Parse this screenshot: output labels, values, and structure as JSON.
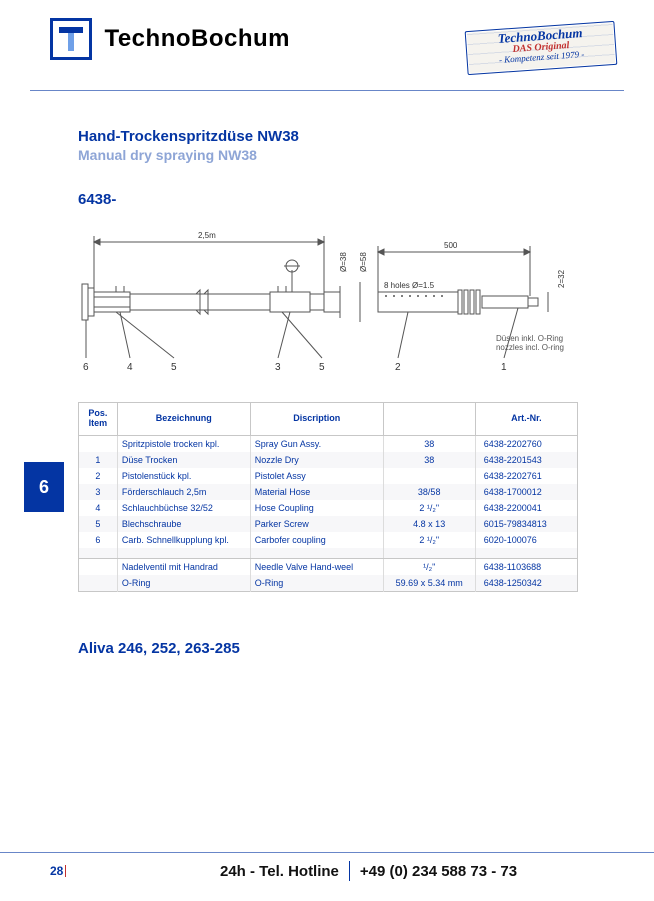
{
  "header": {
    "brand": "TechnoBochum",
    "stamp_brand": "TechnoBochum",
    "stamp_mid": "DAS Original",
    "stamp_bot": "- Kompetenz seit 1979 -",
    "logo_color": "#0435a3"
  },
  "titles": {
    "de": "Hand-Trockenspritzdüse NW38",
    "en": "Manual dry spraying NW38",
    "code": "6438-",
    "models": "Aliva 246, 252, 263-285"
  },
  "diagram": {
    "dim_length_m": "2,5m",
    "dim_d1": "Ø=38",
    "dim_d2": "Ø=58",
    "dim_right_len": "500",
    "dim_right_h": "2=32",
    "holes_note": "8 holes Ø=1.5",
    "callouts": [
      "6",
      "4",
      "5",
      "3",
      "5",
      "2",
      "1"
    ],
    "caption_de": "Düsen inkl. O-Ring",
    "caption_en": "nozzles incl. O-ring"
  },
  "side_tab": "6",
  "table": {
    "headers": {
      "pos": "Pos.\nItem",
      "de": "Bezeichnung",
      "en": "Discription",
      "sz": "",
      "art": "Art.-Nr."
    },
    "rows": [
      {
        "pos": "",
        "de": "Spritzpistole trocken kpl.",
        "en": "Spray Gun Assy.",
        "sz": "38",
        "art": "6438-2202760"
      },
      {
        "pos": "1",
        "de": "Düse Trocken",
        "en": "Nozzle Dry",
        "sz": "38",
        "art": "6438-2201543"
      },
      {
        "pos": "2",
        "de": "Pistolenstück kpl.",
        "en": "Pistolet Assy",
        "sz": "",
        "art": "6438-2202761"
      },
      {
        "pos": "3",
        "de": "Förderschlauch 2,5m",
        "en": "Material Hose",
        "sz": "38/58",
        "art": "6438-1700012"
      },
      {
        "pos": "4",
        "de": "Schlauchbüchse 32/52",
        "en": "Hose Coupling",
        "sz": "2 ¹/₂\"",
        "art": "6438-2200041"
      },
      {
        "pos": "5",
        "de": "Blechschraube",
        "en": "Parker Screw",
        "sz": "4.8 x 13",
        "art": "6015-79834813"
      },
      {
        "pos": "6",
        "de": "Carb. Schnellkupplung kpl.",
        "en": "Carbofer coupling",
        "sz": "2 ¹/₂\"",
        "art": "6020-100076"
      }
    ],
    "rows2": [
      {
        "pos": "",
        "de": "Nadelventil mit Handrad",
        "en": "Needle Valve Hand-weel",
        "sz": "¹/₂\"",
        "art": "6438-1103688"
      },
      {
        "pos": "",
        "de": "O-Ring",
        "en": "O-Ring",
        "sz": "59.69 x 5.34 mm",
        "art": "6438-1250342"
      }
    ]
  },
  "footer": {
    "page": "28",
    "hotline_label": "24h - Tel. Hotline",
    "hotline_num": "+49 (0) 234 588 73 - 73"
  },
  "palette": {
    "brand_blue": "#0435a3",
    "light_blue": "#8ea5d6",
    "accent_red": "#c2302f",
    "rule_gray": "#c7c7c7"
  }
}
